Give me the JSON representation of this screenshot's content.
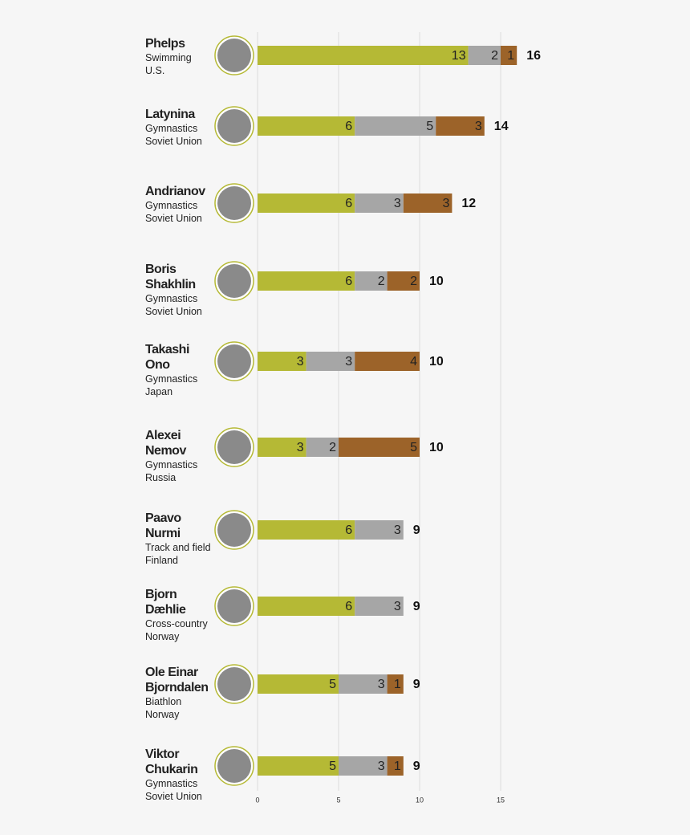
{
  "chart_data": {
    "type": "bar",
    "orientation": "horizontal",
    "stacked": true,
    "categories": [
      "Phelps",
      "Latynina",
      "Andrianov",
      "Boris Shakhlin",
      "Takashi Ono",
      "Alexei Nemov",
      "Paavo Nurmi",
      "Bjorn Dæhlie",
      "Ole Einar Bjorndalen",
      "Viktor Chukarin"
    ],
    "sports": [
      "Swimming",
      "Gymnastics",
      "Gymnastics",
      "Gymnastics",
      "Gymnastics",
      "Gymnastics",
      "Track and field",
      "Cross-country",
      "Biathlon",
      "Gymnastics"
    ],
    "countries": [
      "U.S.",
      "Soviet Union",
      "Soviet Union",
      "Soviet Union",
      "Japan",
      "Russia",
      "Finland",
      "Norway",
      "Norway",
      "Soviet Union"
    ],
    "series": [
      {
        "color": "#b5b935",
        "values": [
          13,
          6,
          6,
          6,
          3,
          3,
          6,
          6,
          5,
          5
        ]
      },
      {
        "color": "#a6a6a6",
        "values": [
          2,
          5,
          3,
          2,
          3,
          2,
          3,
          3,
          3,
          3
        ]
      },
      {
        "color": "#9c6329",
        "values": [
          1,
          3,
          3,
          2,
          4,
          5,
          0,
          0,
          1,
          1
        ]
      }
    ],
    "totals": [
      16,
      14,
      12,
      10,
      10,
      10,
      9,
      9,
      9,
      9
    ],
    "xlim": [
      0,
      20
    ],
    "xticks": [
      0,
      5,
      10,
      15
    ],
    "grid": true
  }
}
